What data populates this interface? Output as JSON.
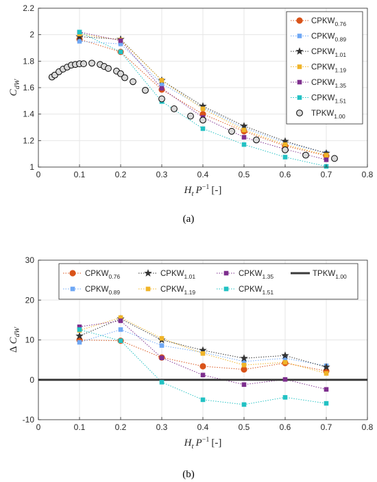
{
  "panel_labels": {
    "a": "(a)",
    "b": "(b)"
  },
  "series_colors": {
    "CPKW_0.76": "#D95319",
    "CPKW_0.89": "#6FA8F5",
    "CPKW_1.01": "#333333",
    "CPKW_1.19": "#F0B428",
    "CPKW_1.35": "#7E2F8E",
    "CPKW_1.51": "#22C1C3",
    "TPKW_1.00": "#3A3A3A"
  },
  "chart_data": [
    {
      "type": "scatter",
      "title": "",
      "xlabel": "H_t P^-1 [-]",
      "ylabel": "C_dW",
      "xlim": [
        0,
        0.8
      ],
      "ylim": [
        1,
        2.2
      ],
      "xticks": [
        "0",
        "0.1",
        "0.2",
        "0.3",
        "0.4",
        "0.5",
        "0.6",
        "0.7",
        "0.8"
      ],
      "yticks": [
        "1",
        "1.2",
        "1.4",
        "1.6",
        "1.8",
        "2",
        "2.2"
      ],
      "grid": true,
      "legend_position": "top-right",
      "series": [
        {
          "name": "CPKW",
          "sub": "0.76",
          "marker": "circle",
          "color": "#D95319",
          "x": [
            0.1,
            0.2,
            0.3,
            0.4,
            0.5,
            0.6,
            0.7
          ],
          "y": [
            1.965,
            1.87,
            1.585,
            1.4,
            1.27,
            1.16,
            1.085
          ]
        },
        {
          "name": "CPKW",
          "sub": "0.89",
          "marker": "square",
          "color": "#6FA8F5",
          "x": [
            0.1,
            0.2,
            0.3,
            0.4,
            0.5,
            0.6,
            0.7
          ],
          "y": [
            1.95,
            1.93,
            1.63,
            1.45,
            1.295,
            1.185,
            1.105
          ]
        },
        {
          "name": "CPKW",
          "sub": "1.01",
          "marker": "star",
          "color": "#333333",
          "x": [
            0.1,
            0.2,
            0.3,
            0.4,
            0.5,
            0.6,
            0.7
          ],
          "y": [
            1.985,
            1.965,
            1.655,
            1.46,
            1.31,
            1.195,
            1.105
          ]
        },
        {
          "name": "CPKW",
          "sub": "1.19",
          "marker": "square",
          "color": "#F0B428",
          "x": [
            0.1,
            0.2,
            0.3,
            0.4,
            0.5,
            0.6,
            0.7
          ],
          "y": [
            2.005,
            1.96,
            1.655,
            1.44,
            1.28,
            1.17,
            1.09
          ]
        },
        {
          "name": "CPKW",
          "sub": "1.35",
          "marker": "square",
          "color": "#7E2F8E",
          "x": [
            0.1,
            0.2,
            0.3,
            0.4,
            0.5,
            0.6,
            0.7
          ],
          "y": [
            2.02,
            1.955,
            1.595,
            1.375,
            1.225,
            1.135,
            1.055
          ]
        },
        {
          "name": "CPKW",
          "sub": "1.51",
          "marker": "square",
          "color": "#22C1C3",
          "x": [
            0.1,
            0.2,
            0.3,
            0.4,
            0.5,
            0.6,
            0.7
          ],
          "y": [
            2.02,
            1.87,
            1.495,
            1.29,
            1.17,
            1.075,
            1.005
          ]
        },
        {
          "name": "TPKW",
          "sub": "1.00",
          "marker": "open-circle",
          "color": "#3A3A3A",
          "x": [
            0.033,
            0.04,
            0.05,
            0.06,
            0.07,
            0.08,
            0.09,
            0.1,
            0.11,
            0.13,
            0.15,
            0.16,
            0.17,
            0.19,
            0.2,
            0.21,
            0.23,
            0.26,
            0.3,
            0.33,
            0.37,
            0.4,
            0.47,
            0.53,
            0.6,
            0.65,
            0.72
          ],
          "y": [
            1.68,
            1.695,
            1.72,
            1.74,
            1.755,
            1.77,
            1.775,
            1.78,
            1.78,
            1.785,
            1.775,
            1.76,
            1.745,
            1.725,
            1.705,
            1.675,
            1.645,
            1.58,
            1.515,
            1.44,
            1.385,
            1.355,
            1.27,
            1.205,
            1.13,
            1.09,
            1.065
          ]
        }
      ]
    },
    {
      "type": "line",
      "title": "",
      "xlabel": "H_t P^-1 [-]",
      "ylabel": "Δ C_dW",
      "xlim": [
        0,
        0.8
      ],
      "ylim": [
        -10,
        30
      ],
      "xticks": [
        "0",
        "0.1",
        "0.2",
        "0.3",
        "0.4",
        "0.5",
        "0.6",
        "0.7",
        "0.8"
      ],
      "yticks": [
        "-10",
        "0",
        "10",
        "20",
        "30"
      ],
      "grid": true,
      "legend_position": "top",
      "series": [
        {
          "name": "CPKW",
          "sub": "0.76",
          "marker": "circle",
          "color": "#D95319",
          "x": [
            0.1,
            0.2,
            0.3,
            0.4,
            0.5,
            0.6,
            0.7
          ],
          "y": [
            10,
            9.8,
            5.6,
            3.4,
            2.6,
            4.2,
            2.2
          ]
        },
        {
          "name": "CPKW",
          "sub": "0.89",
          "marker": "square",
          "color": "#6FA8F5",
          "x": [
            0.1,
            0.2,
            0.3,
            0.4,
            0.5,
            0.6,
            0.7
          ],
          "y": [
            9.4,
            12.6,
            8.6,
            6.9,
            4.6,
            5.4,
            3.5
          ]
        },
        {
          "name": "CPKW",
          "sub": "1.01",
          "marker": "star",
          "color": "#333333",
          "x": [
            0.1,
            0.2,
            0.3,
            0.4,
            0.5,
            0.6,
            0.7
          ],
          "y": [
            11,
            15.3,
            10,
            7.4,
            5.4,
            6.1,
            3.2
          ]
        },
        {
          "name": "CPKW",
          "sub": "1.19",
          "marker": "square",
          "color": "#F0B428",
          "x": [
            0.1,
            0.2,
            0.3,
            0.4,
            0.5,
            0.6,
            0.7
          ],
          "y": [
            12.4,
            15.6,
            10.4,
            6.6,
            3.7,
            4.4,
            1.6
          ]
        },
        {
          "name": "CPKW",
          "sub": "1.35",
          "marker": "square",
          "color": "#7E2F8E",
          "x": [
            0.1,
            0.2,
            0.3,
            0.4,
            0.5,
            0.6,
            0.7
          ],
          "y": [
            13.3,
            14.8,
            5.5,
            1.2,
            -1.2,
            0.1,
            -2.4
          ]
        },
        {
          "name": "CPKW",
          "sub": "1.51",
          "marker": "square",
          "color": "#22C1C3",
          "x": [
            0.1,
            0.2,
            0.3,
            0.4,
            0.5,
            0.6,
            0.7
          ],
          "y": [
            12.6,
            9.8,
            -0.6,
            -5,
            -6.2,
            -4.4,
            -5.9
          ]
        },
        {
          "name": "TPKW",
          "sub": "1.00",
          "marker": "none",
          "color": "#3A3A3A",
          "x": [
            0,
            0.8
          ],
          "y": [
            0,
            0
          ]
        }
      ]
    }
  ]
}
